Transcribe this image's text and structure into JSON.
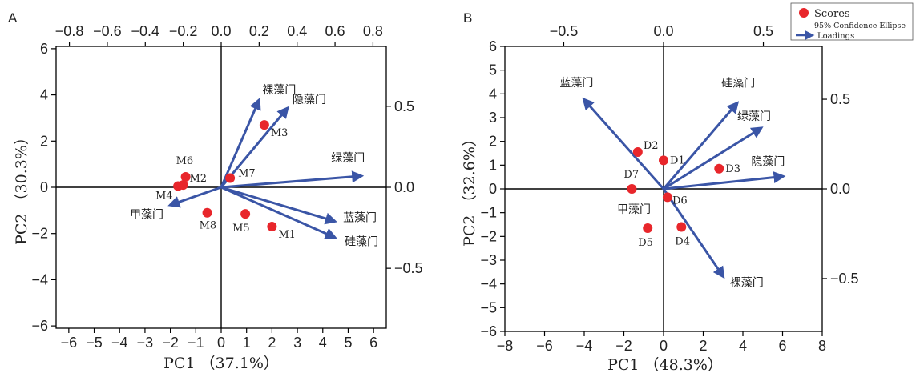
{
  "chart_data": [
    {
      "panel_label": "A",
      "type": "scatter",
      "xlabel": "PC1 （37.1%）",
      "ylabel": "PC2 （30.3%）",
      "xlim": [
        -6.5,
        6.5
      ],
      "ylim": [
        -6.1,
        6.1
      ],
      "xticks": [
        -6,
        -5,
        -4,
        -3,
        -2,
        -1,
        0,
        1,
        2,
        3,
        4,
        5,
        6
      ],
      "yticks": [
        -6,
        -4,
        -2,
        0,
        2,
        4,
        6
      ],
      "loading_lim": [
        -0.87,
        0.87
      ],
      "top_ticks": [
        -0.8,
        -0.6,
        -0.4,
        -0.2,
        0.0,
        0.2,
        0.4,
        0.6,
        0.8
      ],
      "top_tick_labels": [
        "−0.8",
        "−0.6",
        "−0.4",
        "−0.2",
        "0.0",
        "0.2",
        "0.4",
        "0.6",
        "0.8"
      ],
      "right_ticks": [
        0.5,
        0.0,
        -0.5
      ],
      "right_tick_labels": [
        "0.5",
        "0.0",
        "−0.5"
      ],
      "scores": [
        {
          "name": "M1",
          "x": 2.0,
          "y": -1.7
        },
        {
          "name": "M2",
          "x": -1.5,
          "y": 0.1
        },
        {
          "name": "M3",
          "x": 1.7,
          "y": 2.7
        },
        {
          "name": "M4",
          "x": -1.7,
          "y": 0.05
        },
        {
          "name": "M5",
          "x": 0.95,
          "y": -1.15
        },
        {
          "name": "M6",
          "x": -1.4,
          "y": 0.45
        },
        {
          "name": "M7",
          "x": 0.35,
          "y": 0.4
        },
        {
          "name": "M8",
          "x": -0.55,
          "y": -1.1
        }
      ],
      "loadings": [
        {
          "name": "裸藻门",
          "x": 0.2,
          "y": 0.54
        },
        {
          "name": "隐藻门",
          "x": 0.35,
          "y": 0.49
        },
        {
          "name": "绿藻门",
          "x": 0.74,
          "y": 0.07
        },
        {
          "name": "甲藻门",
          "x": -0.27,
          "y": -0.11
        },
        {
          "name": "蓝藻门",
          "x": 0.6,
          "y": -0.21
        },
        {
          "name": "硅藻门",
          "x": 0.6,
          "y": -0.31
        }
      ]
    },
    {
      "panel_label": "B",
      "type": "scatter",
      "xlabel": "PC1 （48.3%）",
      "ylabel": "PC2 （32.6%）",
      "xlim": [
        -8,
        8
      ],
      "ylim": [
        -6,
        6
      ],
      "xticks": [
        -8,
        -6,
        -4,
        -2,
        0,
        2,
        4,
        6,
        8
      ],
      "yticks": [
        -6,
        -5,
        -4,
        -3,
        -2,
        -1,
        0,
        1,
        2,
        3,
        4,
        5,
        6
      ],
      "loading_lim": [
        -0.795,
        0.795
      ],
      "top_ticks": [
        -0.5,
        0.0,
        0.5
      ],
      "top_tick_labels": [
        "−0.5",
        "0.0",
        "0.5"
      ],
      "right_ticks": [
        0.5,
        0.0,
        -0.5
      ],
      "right_tick_labels": [
        "0.5",
        "0.0",
        "−0.5"
      ],
      "scores": [
        {
          "name": "D1",
          "x": 0.0,
          "y": 1.2
        },
        {
          "name": "D2",
          "x": -1.3,
          "y": 1.55
        },
        {
          "name": "D3",
          "x": 2.8,
          "y": 0.85
        },
        {
          "name": "D4",
          "x": 0.9,
          "y": -1.6
        },
        {
          "name": "D5",
          "x": -0.8,
          "y": -1.65
        },
        {
          "name": "D6",
          "x": 0.2,
          "y": -0.35
        },
        {
          "name": "D7",
          "x": -1.6,
          "y": 0.0
        }
      ],
      "loadings": [
        {
          "name": "蓝藻门",
          "x": -0.4,
          "y": 0.5
        },
        {
          "name": "硅藻门",
          "x": 0.37,
          "y": 0.48
        },
        {
          "name": "绿藻门",
          "x": 0.49,
          "y": 0.34
        },
        {
          "name": "隐藻门",
          "x": 0.6,
          "y": 0.07
        },
        {
          "name": "甲藻门",
          "x": 0.0,
          "y": 0.0
        },
        {
          "name": "裸藻门",
          "x": 0.3,
          "y": -0.49
        }
      ],
      "legend": {
        "placement": "top-right",
        "entries": [
          "Scores",
          "95% Confidence Ellipse",
          "Loadings"
        ]
      }
    }
  ],
  "colors": {
    "score": "#e8262b",
    "loading": "#3a55a6",
    "axis": "#000000"
  }
}
